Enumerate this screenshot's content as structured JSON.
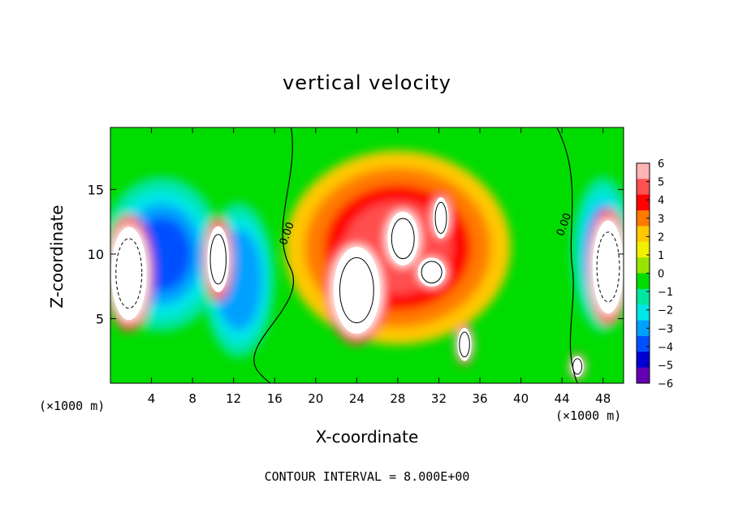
{
  "chart_data": {
    "type": "heatmap",
    "title": "vertical velocity",
    "xlabel": "X-coordinate",
    "ylabel": "Z-coordinate",
    "x_unit_label": "(×1000 m)",
    "x_unit_label_right": "(×1000 m)",
    "contour_interval_text": "CONTOUR INTERVAL = 8.000E+00",
    "xlim": [
      0,
      50
    ],
    "ylim": [
      0,
      19.8
    ],
    "xticks": [
      4,
      8,
      12,
      16,
      20,
      24,
      28,
      32,
      36,
      40,
      44,
      48
    ],
    "xtick_labels": [
      "4",
      "8",
      "12",
      "16",
      "20",
      "24",
      "28",
      "32",
      "36",
      "40",
      "44",
      "48"
    ],
    "yticks": [
      5,
      10,
      15
    ],
    "ytick_labels": [
      "5",
      "10",
      "15"
    ],
    "colorbar": {
      "range": [
        -6,
        6
      ],
      "ticks": [
        6,
        5,
        4,
        3,
        2,
        1,
        0,
        -1,
        -2,
        -3,
        -4,
        -5,
        -6
      ],
      "tick_labels": [
        "6",
        "5",
        "4",
        "3",
        "2",
        "1",
        "0",
        "−1",
        "−2",
        "−3",
        "−4",
        "−5",
        "−6"
      ],
      "colors": [
        "#ffb4b4",
        "#ff5050",
        "#ff0000",
        "#ff7a00",
        "#ffc800",
        "#f0f000",
        "#96e600",
        "#00dc00",
        "#00e6a0",
        "#00e6e6",
        "#00a0ff",
        "#0050ff",
        "#0000d2",
        "#6400b4"
      ]
    },
    "contour_labels": [
      {
        "text": "0.00",
        "x": 17.5,
        "y": 11.5
      },
      {
        "text": "0.00",
        "x": 44.5,
        "y": 12.2
      }
    ],
    "features": [
      {
        "kind": "updraft_core",
        "x": 24,
        "y": 7.2,
        "rx": 3.0,
        "ry": 4.2,
        "value": 9
      },
      {
        "kind": "updraft_core",
        "x": 28.5,
        "y": 11.2,
        "rx": 2.0,
        "ry": 2.6,
        "value": 9
      },
      {
        "kind": "updraft_core",
        "x": 32.2,
        "y": 12.8,
        "rx": 1.0,
        "ry": 2.0,
        "value": 8
      },
      {
        "kind": "updraft_core",
        "x": 31.3,
        "y": 8.6,
        "rx": 1.8,
        "ry": 1.4,
        "value": 8
      },
      {
        "kind": "updraft_core",
        "x": 34.5,
        "y": 3.0,
        "rx": 0.9,
        "ry": 1.6,
        "value": 8
      },
      {
        "kind": "updraft_core",
        "x": 45.5,
        "y": 1.3,
        "rx": 0.8,
        "ry": 1.0,
        "value": 8
      },
      {
        "kind": "updraft_core",
        "x": 10.5,
        "y": 9.6,
        "rx": 1.4,
        "ry": 3.2,
        "value": 8
      },
      {
        "kind": "updraft_core",
        "x": 1.8,
        "y": 8.5,
        "rx": 2.3,
        "ry": 4.5,
        "value": 9
      },
      {
        "kind": "updraft_core",
        "x": 48.5,
        "y": 9.0,
        "rx": 2.0,
        "ry": 4.5,
        "value": 9
      },
      {
        "kind": "warm_region",
        "x": 28,
        "y": 10.5,
        "rx": 11,
        "ry": 7.5,
        "value": 4.5
      },
      {
        "kind": "downdraft",
        "x": 5,
        "y": 10,
        "rx": 6,
        "ry": 6,
        "value": -4.5
      },
      {
        "kind": "downdraft",
        "x": 12.5,
        "y": 8,
        "rx": 3.5,
        "ry": 6,
        "value": -4
      },
      {
        "kind": "downdraft",
        "x": 48,
        "y": 10,
        "rx": 3,
        "ry": 6,
        "value": -4.5
      }
    ]
  }
}
